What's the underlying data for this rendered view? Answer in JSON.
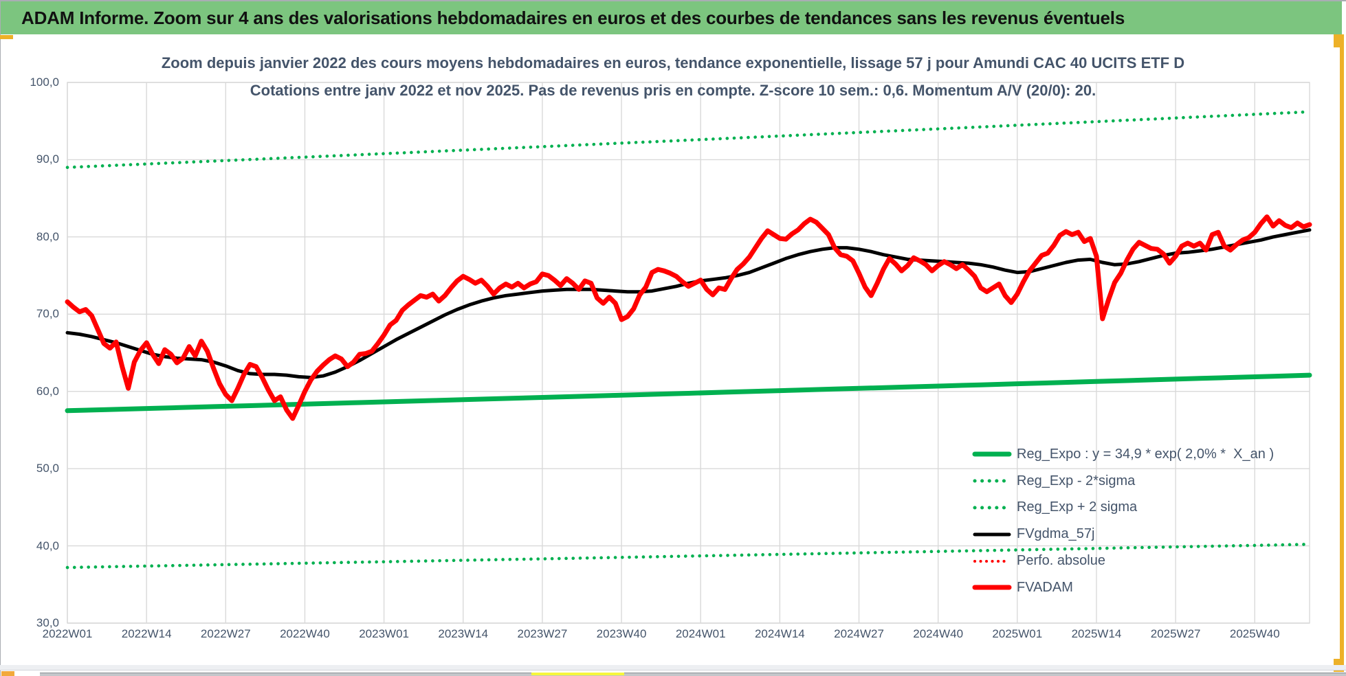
{
  "banner": {
    "text": "ADAM Informe. Zoom sur 4 ans des valorisations hebdomadaires en euros et des courbes de tendances sans les revenus éventuels"
  },
  "title": {
    "line1": "Zoom depuis janvier 2022 des cours moyens hebdomadaires en euros, tendance exponentielle, lissage 57 j pour Amundi CAC 40 UCITS ETF D",
    "line2": "Cotations entre janv 2022 et nov 2025. Pas de revenus pris en compte. Z-score 10 sem.: 0,6. Momentum A/V (20/0): 20."
  },
  "colors": {
    "banner_green": "#7CC57F",
    "series_green": "#00B050",
    "series_red": "#FF0000",
    "series_black": "#000000",
    "text_slate": "#44546A",
    "gridline": "#D9D9D9",
    "gold_border": "#EDB128",
    "yellow_dash": "#F6F63C",
    "orange_square": "#F2A93B"
  },
  "legend": {
    "items": [
      {
        "label": "Reg_Expo : y = 34,9 * exp( 2,0% *  X_an )",
        "color": "#00B050",
        "style": "solid",
        "width": 7
      },
      {
        "label": "Reg_Exp - 2*sigma",
        "color": "#00B050",
        "style": "dotted",
        "width": 5
      },
      {
        "label": "Reg_Exp + 2 sigma",
        "color": "#00B050",
        "style": "dotted",
        "width": 5
      },
      {
        "label": "FVgdma_57j",
        "color": "#000000",
        "style": "solid",
        "width": 5
      },
      {
        "label": "Perfo. absolue",
        "color": "#FF0000",
        "style": "dotted",
        "width": 4
      },
      {
        "label": "FVADAM",
        "color": "#FF0000",
        "style": "solid",
        "width": 7
      }
    ]
  },
  "axes": {
    "y_ticks": [
      {
        "label": "100,0",
        "value": 100
      },
      {
        "label": "90,0",
        "value": 90
      },
      {
        "label": "80,0",
        "value": 80
      },
      {
        "label": "70,0",
        "value": 70
      },
      {
        "label": "60,0",
        "value": 60
      },
      {
        "label": "50,0",
        "value": 50
      },
      {
        "label": "40,0",
        "value": 40
      },
      {
        "label": "30,0",
        "value": 30
      }
    ],
    "x_ticks": [
      {
        "label": "2022W01",
        "week": 0
      },
      {
        "label": "2022W14",
        "week": 13
      },
      {
        "label": "2022W27",
        "week": 26
      },
      {
        "label": "2022W40",
        "week": 39
      },
      {
        "label": "2023W01",
        "week": 52
      },
      {
        "label": "2023W14",
        "week": 65
      },
      {
        "label": "2023W27",
        "week": 78
      },
      {
        "label": "2023W40",
        "week": 91
      },
      {
        "label": "2024W01",
        "week": 104
      },
      {
        "label": "2024W14",
        "week": 117
      },
      {
        "label": "2024W27",
        "week": 130
      },
      {
        "label": "2024W40",
        "week": 143
      },
      {
        "label": "2025W01",
        "week": 156
      },
      {
        "label": "2025W14",
        "week": 169
      },
      {
        "label": "2025W27",
        "week": 182
      },
      {
        "label": "2025W40",
        "week": 195
      }
    ]
  },
  "chart_data": {
    "type": "line",
    "x_unit": "ISO week index from 2022W01 (0) to ~2025W48 (204)",
    "week_count": 205,
    "ylim": [
      30,
      100
    ],
    "grid": true,
    "legend_position": "inside lower right, transparent",
    "series": [
      {
        "name": "FVADAM",
        "color": "#FF0000",
        "style": "solid",
        "stroke_width": 7,
        "values_weekly": [
          71.6,
          70.9,
          70.3,
          70.6,
          69.8,
          68.0,
          66.2,
          65.6,
          66.4,
          63.2,
          60.4,
          63.8,
          65.3,
          66.3,
          64.8,
          63.6,
          65.4,
          64.8,
          63.7,
          64.3,
          65.8,
          64.6,
          66.5,
          65.2,
          63.0,
          61.0,
          59.6,
          58.8,
          60.4,
          62.2,
          63.5,
          63.2,
          61.8,
          60.2,
          58.8,
          59.3,
          57.6,
          56.5,
          58.2,
          60.0,
          61.5,
          62.6,
          63.4,
          64.1,
          64.6,
          64.2,
          63.2,
          63.8,
          64.8,
          64.9,
          65.2,
          66.2,
          67.3,
          68.6,
          69.2,
          70.5,
          71.2,
          71.8,
          72.4,
          72.2,
          72.6,
          71.7,
          72.4,
          73.4,
          74.3,
          74.9,
          74.5,
          74.0,
          74.4,
          73.6,
          72.6,
          73.4,
          73.9,
          73.5,
          74.0,
          73.4,
          73.9,
          74.2,
          75.2,
          75.0,
          74.4,
          73.7,
          74.6,
          74.0,
          73.2,
          74.3,
          74.0,
          72.1,
          71.4,
          72.2,
          71.4,
          69.3,
          69.7,
          70.7,
          72.5,
          73.5,
          75.4,
          75.8,
          75.6,
          75.3,
          74.9,
          74.2,
          73.6,
          74.0,
          74.4,
          73.2,
          72.5,
          73.4,
          73.2,
          74.6,
          75.8,
          76.5,
          77.4,
          78.6,
          79.8,
          80.8,
          80.3,
          79.8,
          79.7,
          80.4,
          80.9,
          81.7,
          82.3,
          81.9,
          81.1,
          80.3,
          78.6,
          77.7,
          77.5,
          76.9,
          75.3,
          73.5,
          72.4,
          74.0,
          75.8,
          77.2,
          76.5,
          75.6,
          76.3,
          77.3,
          76.9,
          76.4,
          75.6,
          76.3,
          76.8,
          76.4,
          75.9,
          76.4,
          75.7,
          74.9,
          73.4,
          72.9,
          73.4,
          73.9,
          72.4,
          71.5,
          72.6,
          74.2,
          75.6,
          76.6,
          77.6,
          77.9,
          78.9,
          80.2,
          80.7,
          80.3,
          80.6,
          79.4,
          79.8,
          77.5,
          69.4,
          71.9,
          74.1,
          75.3,
          77.0,
          78.4,
          79.3,
          78.9,
          78.5,
          78.4,
          77.8,
          76.6,
          77.5,
          78.8,
          79.2,
          78.8,
          79.2,
          78.3,
          80.3,
          80.6,
          78.8,
          78.3,
          79.0,
          79.6,
          79.9,
          80.6,
          81.7,
          82.6,
          81.4,
          82.1,
          81.5,
          81.2,
          81.8,
          81.3,
          81.6
        ]
      },
      {
        "name": "FVgdma_57j",
        "color": "#000000",
        "style": "solid",
        "stroke_width": 5,
        "anchors_week_value": [
          [
            0,
            67.6
          ],
          [
            2,
            67.4
          ],
          [
            4,
            67.1
          ],
          [
            6,
            66.7
          ],
          [
            8,
            66.3
          ],
          [
            10,
            65.8
          ],
          [
            12,
            65.3
          ],
          [
            14,
            64.8
          ],
          [
            16,
            64.5
          ],
          [
            18,
            64.3
          ],
          [
            20,
            64.2
          ],
          [
            22,
            64.1
          ],
          [
            24,
            63.8
          ],
          [
            26,
            63.3
          ],
          [
            28,
            62.7
          ],
          [
            30,
            62.3
          ],
          [
            32,
            62.2
          ],
          [
            34,
            62.2
          ],
          [
            36,
            62.1
          ],
          [
            38,
            61.9
          ],
          [
            40,
            61.8
          ],
          [
            42,
            62.0
          ],
          [
            44,
            62.5
          ],
          [
            46,
            63.2
          ],
          [
            48,
            64.0
          ],
          [
            50,
            64.9
          ],
          [
            52,
            65.8
          ],
          [
            54,
            66.7
          ],
          [
            56,
            67.5
          ],
          [
            58,
            68.3
          ],
          [
            60,
            69.1
          ],
          [
            62,
            69.9
          ],
          [
            64,
            70.6
          ],
          [
            66,
            71.2
          ],
          [
            68,
            71.7
          ],
          [
            70,
            72.1
          ],
          [
            72,
            72.4
          ],
          [
            74,
            72.6
          ],
          [
            76,
            72.8
          ],
          [
            78,
            73.0
          ],
          [
            80,
            73.1
          ],
          [
            82,
            73.2
          ],
          [
            84,
            73.2
          ],
          [
            86,
            73.2
          ],
          [
            88,
            73.1
          ],
          [
            90,
            73.0
          ],
          [
            92,
            72.9
          ],
          [
            94,
            72.9
          ],
          [
            96,
            73.0
          ],
          [
            98,
            73.3
          ],
          [
            100,
            73.6
          ],
          [
            102,
            74.0
          ],
          [
            104,
            74.3
          ],
          [
            106,
            74.5
          ],
          [
            108,
            74.7
          ],
          [
            110,
            75.0
          ],
          [
            112,
            75.4
          ],
          [
            114,
            76.0
          ],
          [
            116,
            76.6
          ],
          [
            118,
            77.2
          ],
          [
            120,
            77.7
          ],
          [
            122,
            78.1
          ],
          [
            124,
            78.4
          ],
          [
            126,
            78.6
          ],
          [
            128,
            78.6
          ],
          [
            130,
            78.4
          ],
          [
            132,
            78.1
          ],
          [
            134,
            77.7
          ],
          [
            136,
            77.4
          ],
          [
            138,
            77.1
          ],
          [
            140,
            77.0
          ],
          [
            142,
            76.9
          ],
          [
            144,
            76.8
          ],
          [
            146,
            76.7
          ],
          [
            148,
            76.6
          ],
          [
            150,
            76.4
          ],
          [
            152,
            76.1
          ],
          [
            154,
            75.7
          ],
          [
            156,
            75.4
          ],
          [
            158,
            75.5
          ],
          [
            160,
            75.9
          ],
          [
            162,
            76.3
          ],
          [
            164,
            76.7
          ],
          [
            166,
            77.0
          ],
          [
            168,
            77.1
          ],
          [
            170,
            76.7
          ],
          [
            172,
            76.4
          ],
          [
            174,
            76.5
          ],
          [
            176,
            76.8
          ],
          [
            178,
            77.2
          ],
          [
            180,
            77.6
          ],
          [
            182,
            77.9
          ],
          [
            184,
            78.0
          ],
          [
            186,
            78.2
          ],
          [
            188,
            78.4
          ],
          [
            190,
            78.7
          ],
          [
            192,
            79.0
          ],
          [
            194,
            79.3
          ],
          [
            196,
            79.6
          ],
          [
            198,
            80.0
          ],
          [
            200,
            80.3
          ],
          [
            202,
            80.6
          ],
          [
            204,
            80.9
          ]
        ]
      },
      {
        "name": "Reg_Expo",
        "formula_label": "y = 34,9 * exp( 2,0% * X_an )",
        "color": "#00B050",
        "style": "solid",
        "stroke_width": 7,
        "exponential": {
          "start_value": 57.5,
          "end_value": 62.1
        }
      },
      {
        "name": "Reg_Exp + 2 sigma",
        "color": "#00B050",
        "style": "dotted",
        "stroke_width": 4.6,
        "exponential": {
          "start_value": 89.0,
          "end_value": 96.2
        }
      },
      {
        "name": "Reg_Exp - 2*sigma",
        "color": "#00B050",
        "style": "dotted",
        "stroke_width": 4.6,
        "exponential": {
          "start_value": 37.2,
          "end_value": 40.2
        }
      },
      {
        "name": "Perfo. absolue",
        "color": "#FF0000",
        "style": "dotted",
        "drawn": false,
        "note": "legend entry only; curve coincides with FVADAM in view"
      }
    ]
  }
}
